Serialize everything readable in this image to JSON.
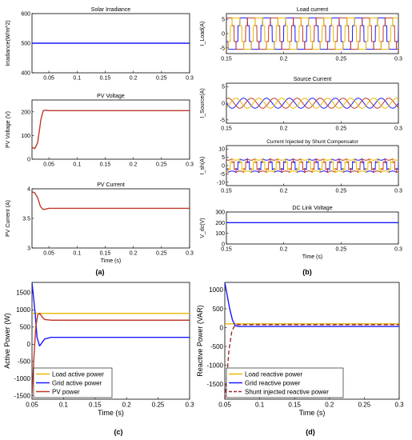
{
  "chart_data": [
    {
      "id": "solar-irradiance",
      "type": "line",
      "title": "Solar Irradiance",
      "xlabel": "",
      "ylabel": "Irradiance(W/m^2)",
      "xlim": [
        0.02,
        0.3
      ],
      "ylim": [
        400,
        600
      ],
      "xticks": [
        0.05,
        0.1,
        0.15,
        0.2,
        0.25,
        0.3
      ],
      "yticks": [
        400,
        500,
        600
      ],
      "xtick_labels": [
        "0.05",
        "0.1",
        "0.15",
        "0.2",
        "0.25",
        "0.3"
      ],
      "ytick_labels": [
        "400",
        "500",
        "600"
      ],
      "grid": false,
      "series": [
        {
          "color": "#1a1aff",
          "x": [
            0.02,
            0.3
          ],
          "y": [
            500,
            500
          ]
        }
      ]
    },
    {
      "id": "pv-voltage",
      "type": "line",
      "title": "PV Voltage",
      "xlabel": "",
      "ylabel": "PV Voltage (V)",
      "xlim": [
        0.02,
        0.3
      ],
      "ylim": [
        0,
        250
      ],
      "xticks": [
        0.05,
        0.1,
        0.15,
        0.2,
        0.25,
        0.3
      ],
      "yticks": [
        0,
        100,
        200
      ],
      "xtick_labels": [
        "0.05",
        "0.1",
        "0.15",
        "0.2",
        "0.25",
        "0.3"
      ],
      "ytick_labels": [
        "0",
        "100",
        "200"
      ],
      "grid": false,
      "series": [
        {
          "color": "#c0392b",
          "x": [
            0.02,
            0.025,
            0.03,
            0.033,
            0.036,
            0.04,
            0.045,
            0.05,
            0.1,
            0.2,
            0.3
          ],
          "y": [
            50,
            45,
            70,
            120,
            170,
            205,
            207,
            205,
            205,
            205,
            205
          ]
        }
      ]
    },
    {
      "id": "pv-current",
      "type": "line",
      "title": "PV Current",
      "xlabel": "Time (s)",
      "ylabel": "PV Current (A)",
      "xlim": [
        0.02,
        0.3
      ],
      "ylim": [
        3.0,
        4.0
      ],
      "xticks": [
        0.05,
        0.1,
        0.15,
        0.2,
        0.25,
        0.3
      ],
      "yticks": [
        3,
        3.5,
        4
      ],
      "xtick_labels": [
        "0.05",
        "0.1",
        "0.15",
        "0.2",
        "0.25",
        "0.3"
      ],
      "ytick_labels": [
        "3",
        "3.5",
        "4"
      ],
      "grid": false,
      "series": [
        {
          "color": "#c0392b",
          "x": [
            0.02,
            0.025,
            0.03,
            0.035,
            0.04,
            0.045,
            0.05,
            0.1,
            0.2,
            0.3
          ],
          "y": [
            3.95,
            3.93,
            3.85,
            3.7,
            3.65,
            3.66,
            3.67,
            3.67,
            3.67,
            3.67
          ]
        }
      ]
    },
    {
      "id": "load-current",
      "type": "line",
      "title": "Load current",
      "xlabel": "",
      "ylabel": "I_Load(A)",
      "xlim": [
        0.15,
        0.3
      ],
      "ylim": [
        -7,
        7
      ],
      "xticks": [
        0.15,
        0.2,
        0.25,
        0.3
      ],
      "yticks": [
        -5,
        0,
        5
      ],
      "xtick_labels": [
        "0.15",
        "0.2",
        "0.25",
        "0.3"
      ],
      "ytick_labels": [
        "-5",
        "0",
        "5"
      ],
      "grid": false,
      "waveform": {
        "kind": "square",
        "amplitude": 5.5,
        "frequency": 50,
        "phases_deg": [
          0,
          -120,
          120
        ]
      },
      "series": [
        {
          "color": "#1a1aff"
        },
        {
          "color": "#c0392b"
        },
        {
          "color": "#e8b800"
        }
      ]
    },
    {
      "id": "source-current",
      "type": "line",
      "title": "Source Current",
      "xlabel": "",
      "ylabel": "I_Source(A)",
      "xlim": [
        0.15,
        0.3
      ],
      "ylim": [
        -6,
        6
      ],
      "xticks": [
        0.15,
        0.2,
        0.25,
        0.3
      ],
      "yticks": [
        -5,
        0,
        5
      ],
      "xtick_labels": [
        "0.15",
        "0.2",
        "0.25",
        "0.3"
      ],
      "ytick_labels": [
        "-5",
        "0",
        "5"
      ],
      "grid": false,
      "waveform": {
        "kind": "sine",
        "amplitude": 1.5,
        "frequency": 50,
        "phases_deg": [
          0,
          -120,
          120
        ]
      },
      "series": [
        {
          "color": "#1a1aff"
        },
        {
          "color": "#c0392b"
        },
        {
          "color": "#e8b800"
        }
      ]
    },
    {
      "id": "shunt-current",
      "type": "line",
      "title": "Current Injected by Shunt Compensator",
      "xlabel": "",
      "ylabel": "I_sh(A)",
      "xlim": [
        0.15,
        0.3
      ],
      "ylim": [
        -12,
        12
      ],
      "xticks": [
        0.15,
        0.2,
        0.25,
        0.3
      ],
      "yticks": [
        -10,
        -5,
        0,
        5,
        10
      ],
      "xtick_labels": [
        "0.15",
        "0.2",
        "0.25",
        "0.3"
      ],
      "ytick_labels": [
        "-10",
        "-5",
        "0",
        "5",
        "10"
      ],
      "grid": false,
      "waveform": {
        "kind": "square-minus-sine",
        "amplitude": 5,
        "frequency": 50,
        "phases_deg": [
          0,
          -120,
          120
        ]
      },
      "series": [
        {
          "color": "#1a1aff"
        },
        {
          "color": "#c0392b"
        },
        {
          "color": "#e8b800"
        }
      ]
    },
    {
      "id": "dc-link-voltage",
      "type": "line",
      "title": "DC Link Voltage",
      "xlabel": "Time (s)",
      "ylabel": "V_dc(V)",
      "xlim": [
        0.15,
        0.3
      ],
      "ylim": [
        0,
        300
      ],
      "xticks": [
        0.15,
        0.2,
        0.25,
        0.3
      ],
      "yticks": [
        0,
        100,
        200,
        300
      ],
      "xtick_labels": [
        "0.15",
        "0.2",
        "0.25",
        "0.3"
      ],
      "ytick_labels": [
        "0",
        "100",
        "200",
        "300"
      ],
      "grid": false,
      "series": [
        {
          "color": "#1a1aff",
          "x": [
            0.15,
            0.3
          ],
          "y": [
            200,
            200
          ]
        }
      ]
    },
    {
      "id": "active-power",
      "type": "line",
      "title": "",
      "xlabel": "Time (s)",
      "ylabel": "Active Power (W)",
      "xlim": [
        0.05,
        0.3
      ],
      "ylim": [
        -1600,
        1800
      ],
      "xticks": [
        0.05,
        0.1,
        0.15,
        0.2,
        0.25,
        0.3
      ],
      "yticks": [
        -1500,
        -1000,
        -500,
        0,
        500,
        1000,
        1500
      ],
      "xtick_labels": [
        "0.05",
        "0.1",
        "0.15",
        "0.2",
        "0.25",
        "0.3"
      ],
      "ytick_labels": [
        "-1500",
        "-1000",
        "-500",
        "0",
        "500",
        "1000",
        "1500"
      ],
      "grid": false,
      "legend_position": "bottom-left",
      "series": [
        {
          "name": "Load active power",
          "color": "#e8b800",
          "dash": false,
          "x": [
            0.05,
            0.06,
            0.3
          ],
          "y": [
            900,
            900,
            900
          ]
        },
        {
          "name": "Grid active power",
          "color": "#1a1aff",
          "dash": false,
          "x": [
            0.05,
            0.055,
            0.058,
            0.062,
            0.066,
            0.07,
            0.08,
            0.1,
            0.3
          ],
          "y": [
            1800,
            900,
            200,
            -50,
            50,
            150,
            200,
            200,
            200
          ]
        },
        {
          "name": "PV  power",
          "color": "#c0392b",
          "dash": false,
          "x": [
            0.05,
            0.053,
            0.056,
            0.059,
            0.062,
            0.066,
            0.07,
            0.08,
            0.1,
            0.3
          ],
          "y": [
            -1500,
            -400,
            500,
            850,
            900,
            800,
            720,
            700,
            700,
            700
          ]
        }
      ]
    },
    {
      "id": "reactive-power",
      "type": "line",
      "title": "",
      "xlabel": "Time (s)",
      "ylabel": "Reactive Power (VAR)",
      "xlim": [
        0.05,
        0.3
      ],
      "ylim": [
        -1900,
        1200
      ],
      "xticks": [
        0.05,
        0.1,
        0.15,
        0.2,
        0.25,
        0.3
      ],
      "yticks": [
        -1500,
        -1000,
        -500,
        0,
        500,
        1000
      ],
      "xtick_labels": [
        "0.05",
        "0.1",
        "0.15",
        "0.2",
        "0.25",
        "0.3"
      ],
      "ytick_labels": [
        "-1500",
        "-1000",
        "-500",
        "0",
        "500",
        "1000"
      ],
      "grid": false,
      "legend_position": "bottom-left",
      "series": [
        {
          "name": "Load reactive power",
          "color": "#e8b800",
          "dash": false,
          "x": [
            0.05,
            0.3
          ],
          "y": [
            100,
            100
          ]
        },
        {
          "name": "Grid reactive power",
          "color": "#1a1aff",
          "dash": false,
          "x": [
            0.05,
            0.053,
            0.057,
            0.061,
            0.065,
            0.07,
            0.1,
            0.3
          ],
          "y": [
            1200,
            900,
            500,
            200,
            50,
            30,
            30,
            30
          ]
        },
        {
          "name": "Shunt injected reactive power",
          "color": "#a0282d",
          "dash": true,
          "x": [
            0.05,
            0.053,
            0.056,
            0.06,
            0.064,
            0.068,
            0.1,
            0.3
          ],
          "y": [
            -1900,
            -1300,
            -600,
            -100,
            50,
            80,
            80,
            80
          ]
        }
      ]
    }
  ],
  "panel_labels": {
    "a": "(a)",
    "b": "(b)",
    "c": "(c)",
    "d": "(d)"
  }
}
